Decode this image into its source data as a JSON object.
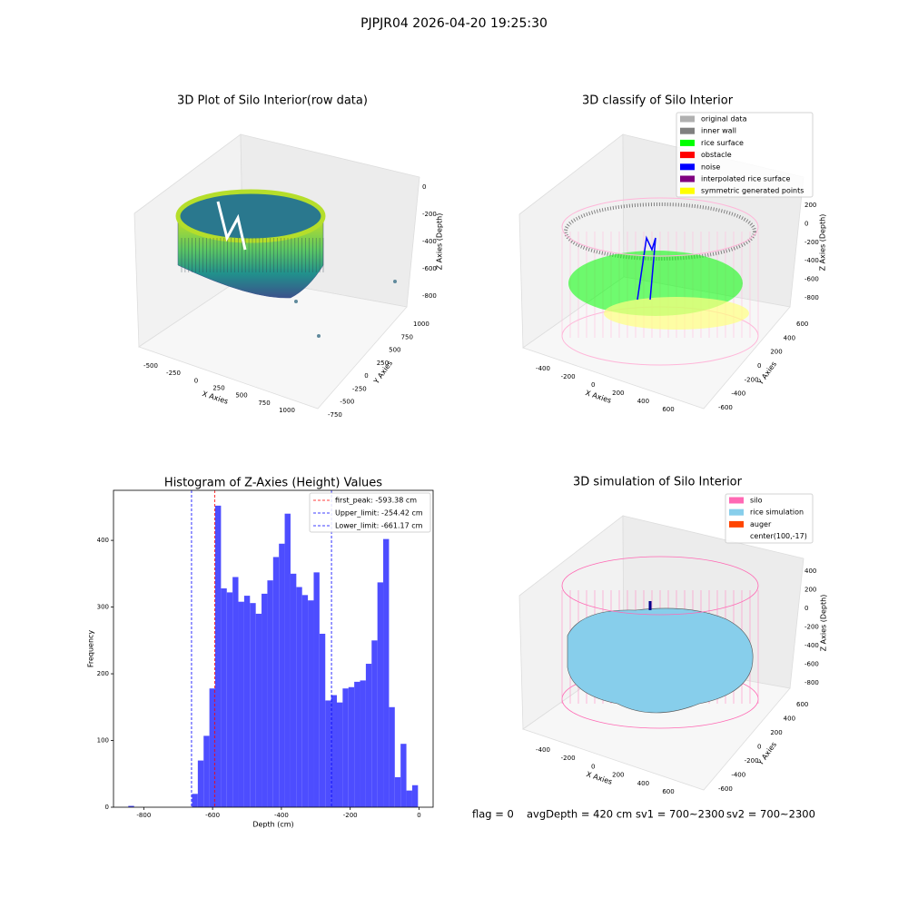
{
  "title": "PJPJR04 2026-04-20 19:25:30",
  "footer": [
    "flag = 0",
    "avgDepth = 420 cm",
    "sv1 = 700~2300",
    "sv2 = 700~2300"
  ],
  "chart_data": [
    {
      "type": "scatter3d",
      "title": "3D Plot of Silo Interior(row data)",
      "xlabel": "X Axies",
      "ylabel": "Y Axies",
      "zlabel": "Z Axies (Depth)",
      "xticks": [
        -500,
        -250,
        0,
        250,
        500,
        750,
        1000
      ],
      "yticks": [
        -750,
        -500,
        -250,
        0,
        250,
        500,
        750,
        1000
      ],
      "zticks": [
        0,
        -200,
        -400,
        -600,
        -800
      ]
    },
    {
      "type": "classify3d",
      "title": "3D classify of Silo Interior",
      "xlabel": "X Axies",
      "ylabel": "Y Axies",
      "zlabel": "Z Axies (Depth)",
      "xticks": [
        -400,
        -200,
        0,
        200,
        400,
        600
      ],
      "yticks": [
        -600,
        -400,
        -200,
        0,
        200,
        400,
        600
      ],
      "zticks": [
        200,
        0,
        -200,
        -400,
        -600,
        -800
      ],
      "legend": [
        {
          "name": "original data",
          "color": "#b0b0b0"
        },
        {
          "name": "inner wall",
          "color": "#808080"
        },
        {
          "name": "rice surface",
          "color": "#00ff00"
        },
        {
          "name": "obstacle",
          "color": "#ff0000"
        },
        {
          "name": "noise",
          "color": "#0000ff"
        },
        {
          "name": "interpolated rice surface",
          "color": "#800080"
        },
        {
          "name": "symmetric generated points",
          "color": "#ffff00"
        }
      ]
    },
    {
      "type": "histogram",
      "title": "Histogram of Z-Axies (Height) Values",
      "xlabel": "Depth (cm)",
      "ylabel": "Frequency",
      "color": "#4d4dff",
      "bins": [
        -845,
        -828.16,
        -811.32,
        -794.48,
        -777.64,
        -760.8,
        -743.96,
        -727.12,
        -710.28,
        -693.44,
        -676.6,
        -659.76,
        -642.92,
        -626.08,
        -609.24,
        -592.4,
        -575.56,
        -558.72,
        -541.88,
        -525.04,
        -508.2,
        -491.36,
        -474.52,
        -457.68,
        -440.84,
        -424,
        -407.16,
        -390.32,
        -373.48,
        -356.64,
        -339.8,
        -322.96,
        -306.12,
        -289.28,
        -272.44,
        -255.6,
        -238.76,
        -221.92,
        -205.08,
        -188.24,
        -171.4,
        -154.56,
        -137.72,
        -120.88,
        -104.04,
        -87.2,
        -70.36,
        -53.52,
        -36.68,
        -19.84,
        -3
      ],
      "counts": [
        2,
        0,
        0,
        0,
        0,
        0,
        0,
        0,
        0,
        0,
        0,
        20,
        70,
        107,
        178,
        452,
        328,
        322,
        345,
        308,
        317,
        306,
        290,
        320,
        340,
        375,
        395,
        440,
        350,
        330,
        318,
        310,
        352,
        260,
        160,
        168,
        157,
        178,
        180,
        188,
        190,
        215,
        250,
        337,
        402,
        150,
        45,
        95,
        25,
        33
      ],
      "xlim": [
        -888,
        41
      ],
      "ylim": [
        0,
        475
      ],
      "xticks": [
        -800,
        -600,
        -400,
        -200,
        0
      ],
      "yticks": [
        0,
        100,
        200,
        300,
        400
      ],
      "lines": [
        {
          "label": "first_peak: -593.38 cm",
          "value": -593.38,
          "color": "#ff0000"
        },
        {
          "label": "Upper_limit: -254.42 cm",
          "value": -254.42,
          "color": "#0000ff"
        },
        {
          "label": "Lower_limit: -661.17 cm",
          "value": -661.17,
          "color": "#0000ff"
        }
      ],
      "legend_loc": "upper right"
    },
    {
      "type": "surface3d",
      "title": "3D simulation of Silo Interior",
      "xlabel": "X Axies",
      "ylabel": "Y Axies",
      "zlabel": "Z Axies (Depth)",
      "xticks": [
        -400,
        -200,
        0,
        200,
        400,
        600
      ],
      "yticks": [
        -600,
        -400,
        -200,
        0,
        200,
        400,
        600
      ],
      "zticks": [
        400,
        200,
        0,
        -200,
        -400,
        -600,
        -800
      ],
      "legend": [
        {
          "name": "silo",
          "color": "#ff69b4"
        },
        {
          "name": "rice simulation",
          "color": "#87ceeb"
        },
        {
          "name": "auger",
          "color": "#ff4500"
        },
        {
          "name": "center(100,-17)"
        }
      ]
    }
  ]
}
